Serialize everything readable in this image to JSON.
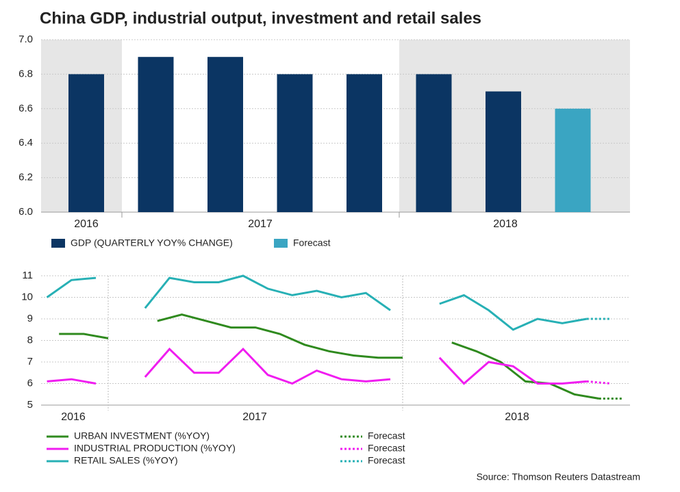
{
  "title": "China GDP, industrial output, investment and retail sales",
  "source": "Source: Thomson Reuters Datastream",
  "chart_data": [
    {
      "type": "bar",
      "categories": [
        null,
        null,
        null,
        null,
        null,
        null,
        null,
        null
      ],
      "period_labels": [
        "2016",
        "2017",
        "2018"
      ],
      "series": [
        {
          "name": "GDP (QUARTERLY YOY% CHANGE)",
          "color": "#0b3563",
          "values": [
            6.8,
            6.9,
            6.9,
            6.8,
            6.8,
            6.8,
            6.7,
            null
          ]
        },
        {
          "name": "Forecast",
          "color": "#3aa5c2",
          "values": [
            null,
            null,
            null,
            null,
            null,
            null,
            null,
            6.6
          ]
        }
      ],
      "ylim": [
        6.0,
        7.0
      ],
      "yticks": [
        {
          "value": 6.0,
          "label": "6.0"
        },
        {
          "value": 6.2,
          "label": "6.2"
        },
        {
          "value": 6.4,
          "label": "6.4"
        },
        {
          "value": 6.6,
          "label": "6.6"
        },
        {
          "value": 6.8,
          "label": "6.8"
        },
        {
          "value": 7.0,
          "label": "7.0"
        }
      ],
      "grid": true
    },
    {
      "type": "line",
      "period_labels": [
        "2016",
        "2017",
        "2018"
      ],
      "xlim": [
        2016.772,
        2018.772
      ],
      "series": [
        {
          "name": "URBAN INVESTMENT (%YOY)",
          "color": "#2f8a1e",
          "dash": false,
          "x": [
            2016.833,
            2016.917,
            2017.0,
            2017.083,
            2017.167,
            2017.25,
            2017.333,
            2017.417,
            2017.5,
            2017.583,
            2017.667,
            2017.75,
            2017.833,
            2017.917,
            2018.0,
            2018.083,
            2018.167,
            2018.25,
            2018.333,
            2018.417,
            2018.5,
            2018.583,
            2018.667
          ],
          "values": [
            8.3,
            8.3,
            8.1,
            null,
            8.9,
            9.2,
            8.9,
            8.6,
            8.6,
            8.3,
            7.8,
            7.5,
            7.3,
            7.2,
            7.2,
            null,
            7.9,
            7.5,
            7.0,
            6.1,
            6.0,
            5.5,
            5.3
          ]
        },
        {
          "name": "INDUSTRIAL PRODUCTION (%YOY)",
          "color": "#f01df0",
          "dash": false,
          "x": [
            2016.792,
            2016.875,
            2016.958,
            2017.042,
            2017.125,
            2017.208,
            2017.292,
            2017.375,
            2017.458,
            2017.542,
            2017.625,
            2017.708,
            2017.792,
            2017.875,
            2017.958,
            2018.042,
            2018.125,
            2018.208,
            2018.292,
            2018.375,
            2018.458,
            2018.542,
            2018.625
          ],
          "values": [
            6.1,
            6.2,
            6.0,
            null,
            6.3,
            7.6,
            6.5,
            6.5,
            7.6,
            6.4,
            6.0,
            6.6,
            6.2,
            6.1,
            6.2,
            null,
            7.2,
            6.0,
            7.0,
            6.8,
            6.0,
            6.0,
            6.1
          ]
        },
        {
          "name": "RETAIL SALES (%YOY)",
          "color": "#27b0b5",
          "dash": false,
          "x": [
            2016.792,
            2016.875,
            2016.958,
            2017.042,
            2017.125,
            2017.208,
            2017.292,
            2017.375,
            2017.458,
            2017.542,
            2017.625,
            2017.708,
            2017.792,
            2017.875,
            2017.958,
            2018.042,
            2018.125,
            2018.208,
            2018.292,
            2018.375,
            2018.458,
            2018.542,
            2018.625
          ],
          "values": [
            10.0,
            10.8,
            10.9,
            null,
            9.5,
            10.9,
            10.7,
            10.7,
            11.0,
            10.4,
            10.1,
            10.3,
            10.0,
            10.2,
            9.4,
            null,
            9.7,
            10.1,
            9.4,
            8.5,
            9.0,
            8.8,
            9.0
          ]
        },
        {
          "name": "Forecast",
          "color": "#2f8a1e",
          "dash": true,
          "x": [
            2018.667,
            2018.75
          ],
          "values": [
            5.3,
            5.3
          ]
        },
        {
          "name": "Forecast",
          "color": "#f01df0",
          "dash": true,
          "x": [
            2018.625,
            2018.708
          ],
          "values": [
            6.1,
            6.0
          ]
        },
        {
          "name": "Forecast",
          "color": "#27b0b5",
          "dash": true,
          "x": [
            2018.625,
            2018.708
          ],
          "values": [
            9.0,
            9.0
          ]
        }
      ],
      "ylim": [
        5,
        11
      ],
      "yticks": [
        5,
        6,
        7,
        8,
        9,
        10,
        11
      ],
      "grid": true
    }
  ]
}
